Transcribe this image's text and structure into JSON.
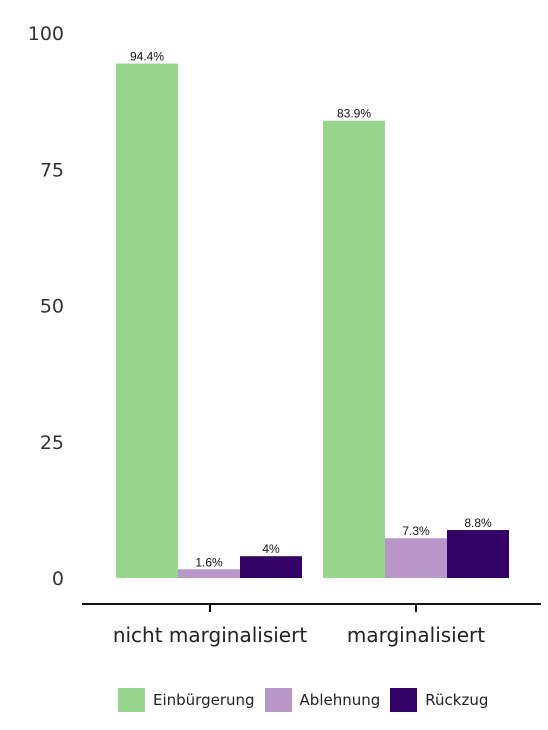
{
  "chart_data": {
    "type": "bar",
    "categories": [
      "nicht marginalisiert",
      "marginalisiert"
    ],
    "series": [
      {
        "name": "Einbürgerung",
        "values": [
          94.4,
          83.9
        ],
        "labels": [
          "94.4%",
          "83.9%"
        ],
        "color": "#98d68d"
      },
      {
        "name": "Ablehnung",
        "values": [
          1.6,
          7.3
        ],
        "labels": [
          "1.6%",
          "7.3%"
        ],
        "color": "#b896c8"
      },
      {
        "name": "Rückzug",
        "values": [
          4.0,
          8.8
        ],
        "labels": [
          "4%",
          "8.8%"
        ],
        "color": "#330066"
      }
    ],
    "yticks": [
      "0",
      "25",
      "50",
      "75",
      "100"
    ],
    "ylim": [
      0,
      100
    ],
    "grid": false,
    "legend_position": "bottom"
  }
}
